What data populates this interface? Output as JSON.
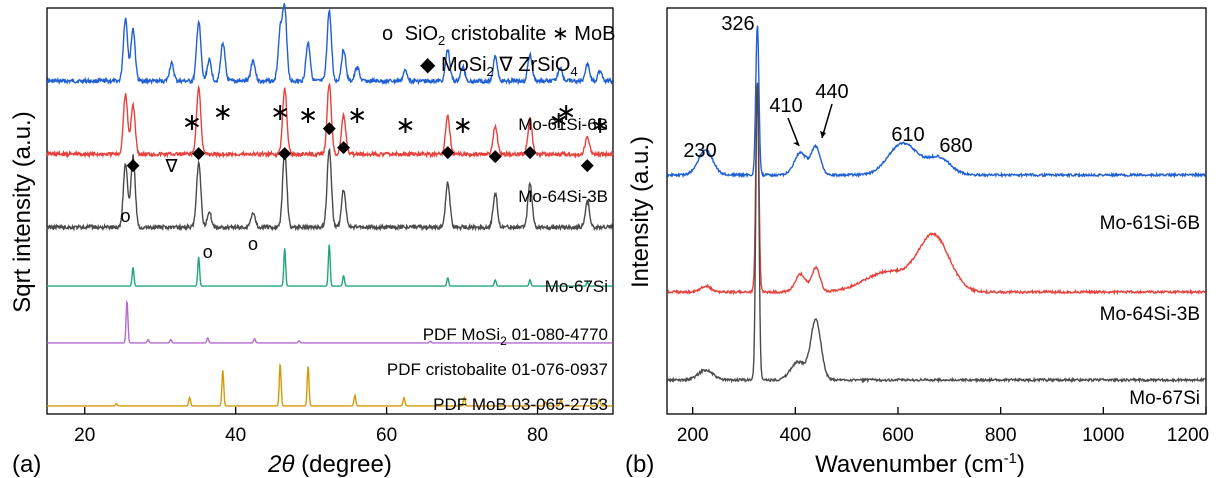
{
  "colors": {
    "blue": "#1f5fd6",
    "red": "#e8413c",
    "gray": "#4a4a4a",
    "green": "#21a67a",
    "purple": "#b36ad1",
    "gold": "#d49a08"
  },
  "chart_data": [
    {
      "type": "line",
      "panel_label": "(a)",
      "xlabel_symbol": "2θ",
      "xlabel_unit": " (degree)",
      "ylabel": "Sqrt intensity (a.u.)",
      "xlim": [
        15,
        90
      ],
      "xticks": [
        20,
        40,
        60,
        80
      ],
      "legend": {
        "line1": {
          "circle": "o",
          "compound_a": "SiO",
          "sub_a": "2",
          "text_a": " cristobalite ",
          "star": "∗",
          "text_b": " MoB"
        },
        "line2": {
          "diamond": "◆",
          "text_a": " MoSi",
          "sub_a": "2",
          "nabla": " ∇ ",
          "text_b": "ZrSiO",
          "sub_b": "4"
        }
      },
      "series": [
        {
          "name": "Mo-61Si-6B",
          "color_key": "blue",
          "offset": 0.82,
          "peaks": [
            [
              25.4,
              0.9
            ],
            [
              26.4,
              0.75
            ],
            [
              31.5,
              0.25
            ],
            [
              35.1,
              0.85
            ],
            [
              36.5,
              0.3
            ],
            [
              38.3,
              0.55
            ],
            [
              42.3,
              0.3
            ],
            [
              45.9,
              0.7
            ],
            [
              46.5,
              1.0
            ],
            [
              49.6,
              0.55
            ],
            [
              52.4,
              1.0
            ],
            [
              54.3,
              0.45
            ],
            [
              56.1,
              0.2
            ],
            [
              62.5,
              0.15
            ],
            [
              68.1,
              0.45
            ],
            [
              70.1,
              0.2
            ],
            [
              74.4,
              0.35
            ],
            [
              79.0,
              0.38
            ],
            [
              83.0,
              0.2
            ],
            [
              86.6,
              0.25
            ],
            [
              88.3,
              0.15
            ]
          ]
        },
        {
          "name": "Mo-64Si-3B",
          "color_key": "red",
          "offset": 0.64,
          "peaks": [
            [
              25.4,
              0.85
            ],
            [
              26.4,
              0.7
            ],
            [
              35.1,
              0.95
            ],
            [
              46.5,
              0.95
            ],
            [
              52.4,
              1.0
            ],
            [
              54.3,
              0.55
            ],
            [
              68.1,
              0.55
            ],
            [
              74.4,
              0.4
            ],
            [
              79.0,
              0.5
            ],
            [
              86.6,
              0.25
            ]
          ]
        },
        {
          "name": "Mo-67Si",
          "color_key": "gray",
          "offset": 0.46,
          "peaks": [
            [
              25.4,
              0.85
            ],
            [
              26.4,
              0.95
            ],
            [
              35.1,
              0.85
            ],
            [
              36.5,
              0.2
            ],
            [
              42.3,
              0.2
            ],
            [
              46.5,
              1.0
            ],
            [
              52.4,
              1.05
            ],
            [
              54.3,
              0.5
            ],
            [
              68.1,
              0.6
            ],
            [
              74.4,
              0.45
            ],
            [
              79.0,
              0.6
            ],
            [
              86.6,
              0.35
            ]
          ]
        },
        {
          "name": "PDF MoSi",
          "name_sub": "2",
          "name_rest": " 01-080-4770",
          "color_key": "green",
          "offset": 0.315,
          "peaks": [
            [
              26.4,
              0.45
            ],
            [
              35.1,
              0.7
            ],
            [
              46.5,
              0.9
            ],
            [
              52.4,
              1.0
            ],
            [
              54.3,
              0.25
            ],
            [
              68.1,
              0.2
            ],
            [
              74.4,
              0.15
            ],
            [
              79.0,
              0.15
            ],
            [
              86.6,
              0.1
            ]
          ]
        },
        {
          "name": "PDF cristobalite 01-076-0937",
          "color_key": "purple",
          "offset": 0.175,
          "peaks": [
            [
              25.6,
              1.0
            ],
            [
              28.4,
              0.08
            ],
            [
              31.4,
              0.08
            ],
            [
              36.3,
              0.12
            ],
            [
              42.5,
              0.1
            ],
            [
              48.4,
              0.05
            ],
            [
              65.8,
              0.04
            ]
          ]
        },
        {
          "name": "PDF MoB 03-065-2753",
          "color_key": "gold",
          "offset": 0.02,
          "peaks": [
            [
              24.2,
              0.05
            ],
            [
              33.9,
              0.2
            ],
            [
              38.3,
              0.85
            ],
            [
              45.9,
              1.0
            ],
            [
              49.6,
              0.95
            ],
            [
              55.8,
              0.25
            ],
            [
              62.3,
              0.2
            ],
            [
              70.3,
              0.2
            ],
            [
              81.0,
              0.1
            ],
            [
              83.1,
              0.15
            ],
            [
              88.2,
              0.15
            ]
          ]
        }
      ],
      "markers": [
        {
          "sym": "∗",
          "x": [
            34.2,
            38.3,
            45.9,
            49.6,
            56.1,
            62.5,
            70.1,
            82.8,
            83.8,
            88.3
          ]
        },
        {
          "sym": "◆",
          "x": [
            26.4,
            35.1,
            46.5,
            52.4,
            54.3,
            68.1,
            74.4,
            79.0,
            86.6
          ]
        },
        {
          "sym": "∇",
          "x": [
            31.5
          ]
        },
        {
          "sym": "o",
          "x": [
            25.4,
            36.3,
            42.3
          ]
        }
      ]
    },
    {
      "type": "line",
      "panel_label": "(b)",
      "xlabel": "Wavenumber (cm",
      "xlabel_sup": "-1",
      "xlabel_end": ")",
      "ylabel": "Intensity (a.u.)",
      "xlim": [
        150,
        1200
      ],
      "xticks": [
        200,
        400,
        600,
        800,
        1000,
        1200
      ],
      "peak_labels": [
        "230",
        "326",
        "410",
        "440",
        "610",
        "680"
      ],
      "series": [
        {
          "name": "Mo-61Si-6B",
          "color_key": "blue"
        },
        {
          "name": "Mo-64Si-3B",
          "color_key": "red"
        },
        {
          "name": "Mo-67Si",
          "color_key": "gray"
        }
      ]
    }
  ]
}
